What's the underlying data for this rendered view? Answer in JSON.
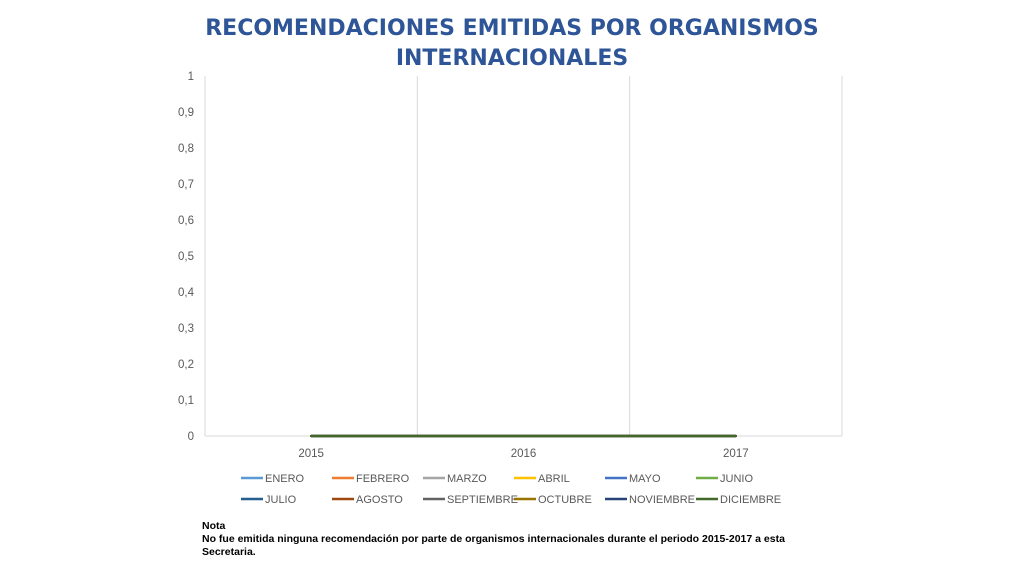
{
  "chart_data": {
    "type": "line",
    "title_lines": [
      "RECOMENDACIONES EMITIDAS POR ORGANISMOS",
      "INTERNACIONALES"
    ],
    "categories": [
      "2015",
      "2016",
      "2017"
    ],
    "y_ticks": [
      "0",
      "0,1",
      "0,2",
      "0,3",
      "0,4",
      "0,5",
      "0,6",
      "0,7",
      "0,8",
      "0,9",
      "1"
    ],
    "ylim": [
      0,
      1
    ],
    "grid": "vertical",
    "legend_placement": "bottom",
    "series": [
      {
        "name": "ENERO",
        "values": [
          0,
          0,
          0
        ],
        "color": "#5b9bd5"
      },
      {
        "name": "FEBRERO",
        "values": [
          0,
          0,
          0
        ],
        "color": "#ed7d31"
      },
      {
        "name": "MARZO",
        "values": [
          0,
          0,
          0
        ],
        "color": "#a5a5a5"
      },
      {
        "name": "ABRIL",
        "values": [
          0,
          0,
          0
        ],
        "color": "#ffc000"
      },
      {
        "name": "MAYO",
        "values": [
          0,
          0,
          0
        ],
        "color": "#4472c4"
      },
      {
        "name": "JUNIO",
        "values": [
          0,
          0,
          0
        ],
        "color": "#70ad47"
      },
      {
        "name": "JULIO",
        "values": [
          0,
          0,
          0
        ],
        "color": "#255e91"
      },
      {
        "name": "AGOSTO",
        "values": [
          0,
          0,
          0
        ],
        "color": "#9e480e"
      },
      {
        "name": "SEPTIEMBRE",
        "values": [
          0,
          0,
          0
        ],
        "color": "#636363"
      },
      {
        "name": "OCTUBRE",
        "values": [
          0,
          0,
          0
        ],
        "color": "#997300"
      },
      {
        "name": "NOVIEMBRE",
        "values": [
          0,
          0,
          0
        ],
        "color": "#264478"
      },
      {
        "name": "DICIEMBRE",
        "values": [
          0,
          0,
          0
        ],
        "color": "#43682b"
      }
    ]
  },
  "note": {
    "heading": "Nota",
    "text": "No fue emitida ninguna recomendación por parte de organismos internacionales durante el periodo 2015-2017 a  esta Secretaria."
  }
}
